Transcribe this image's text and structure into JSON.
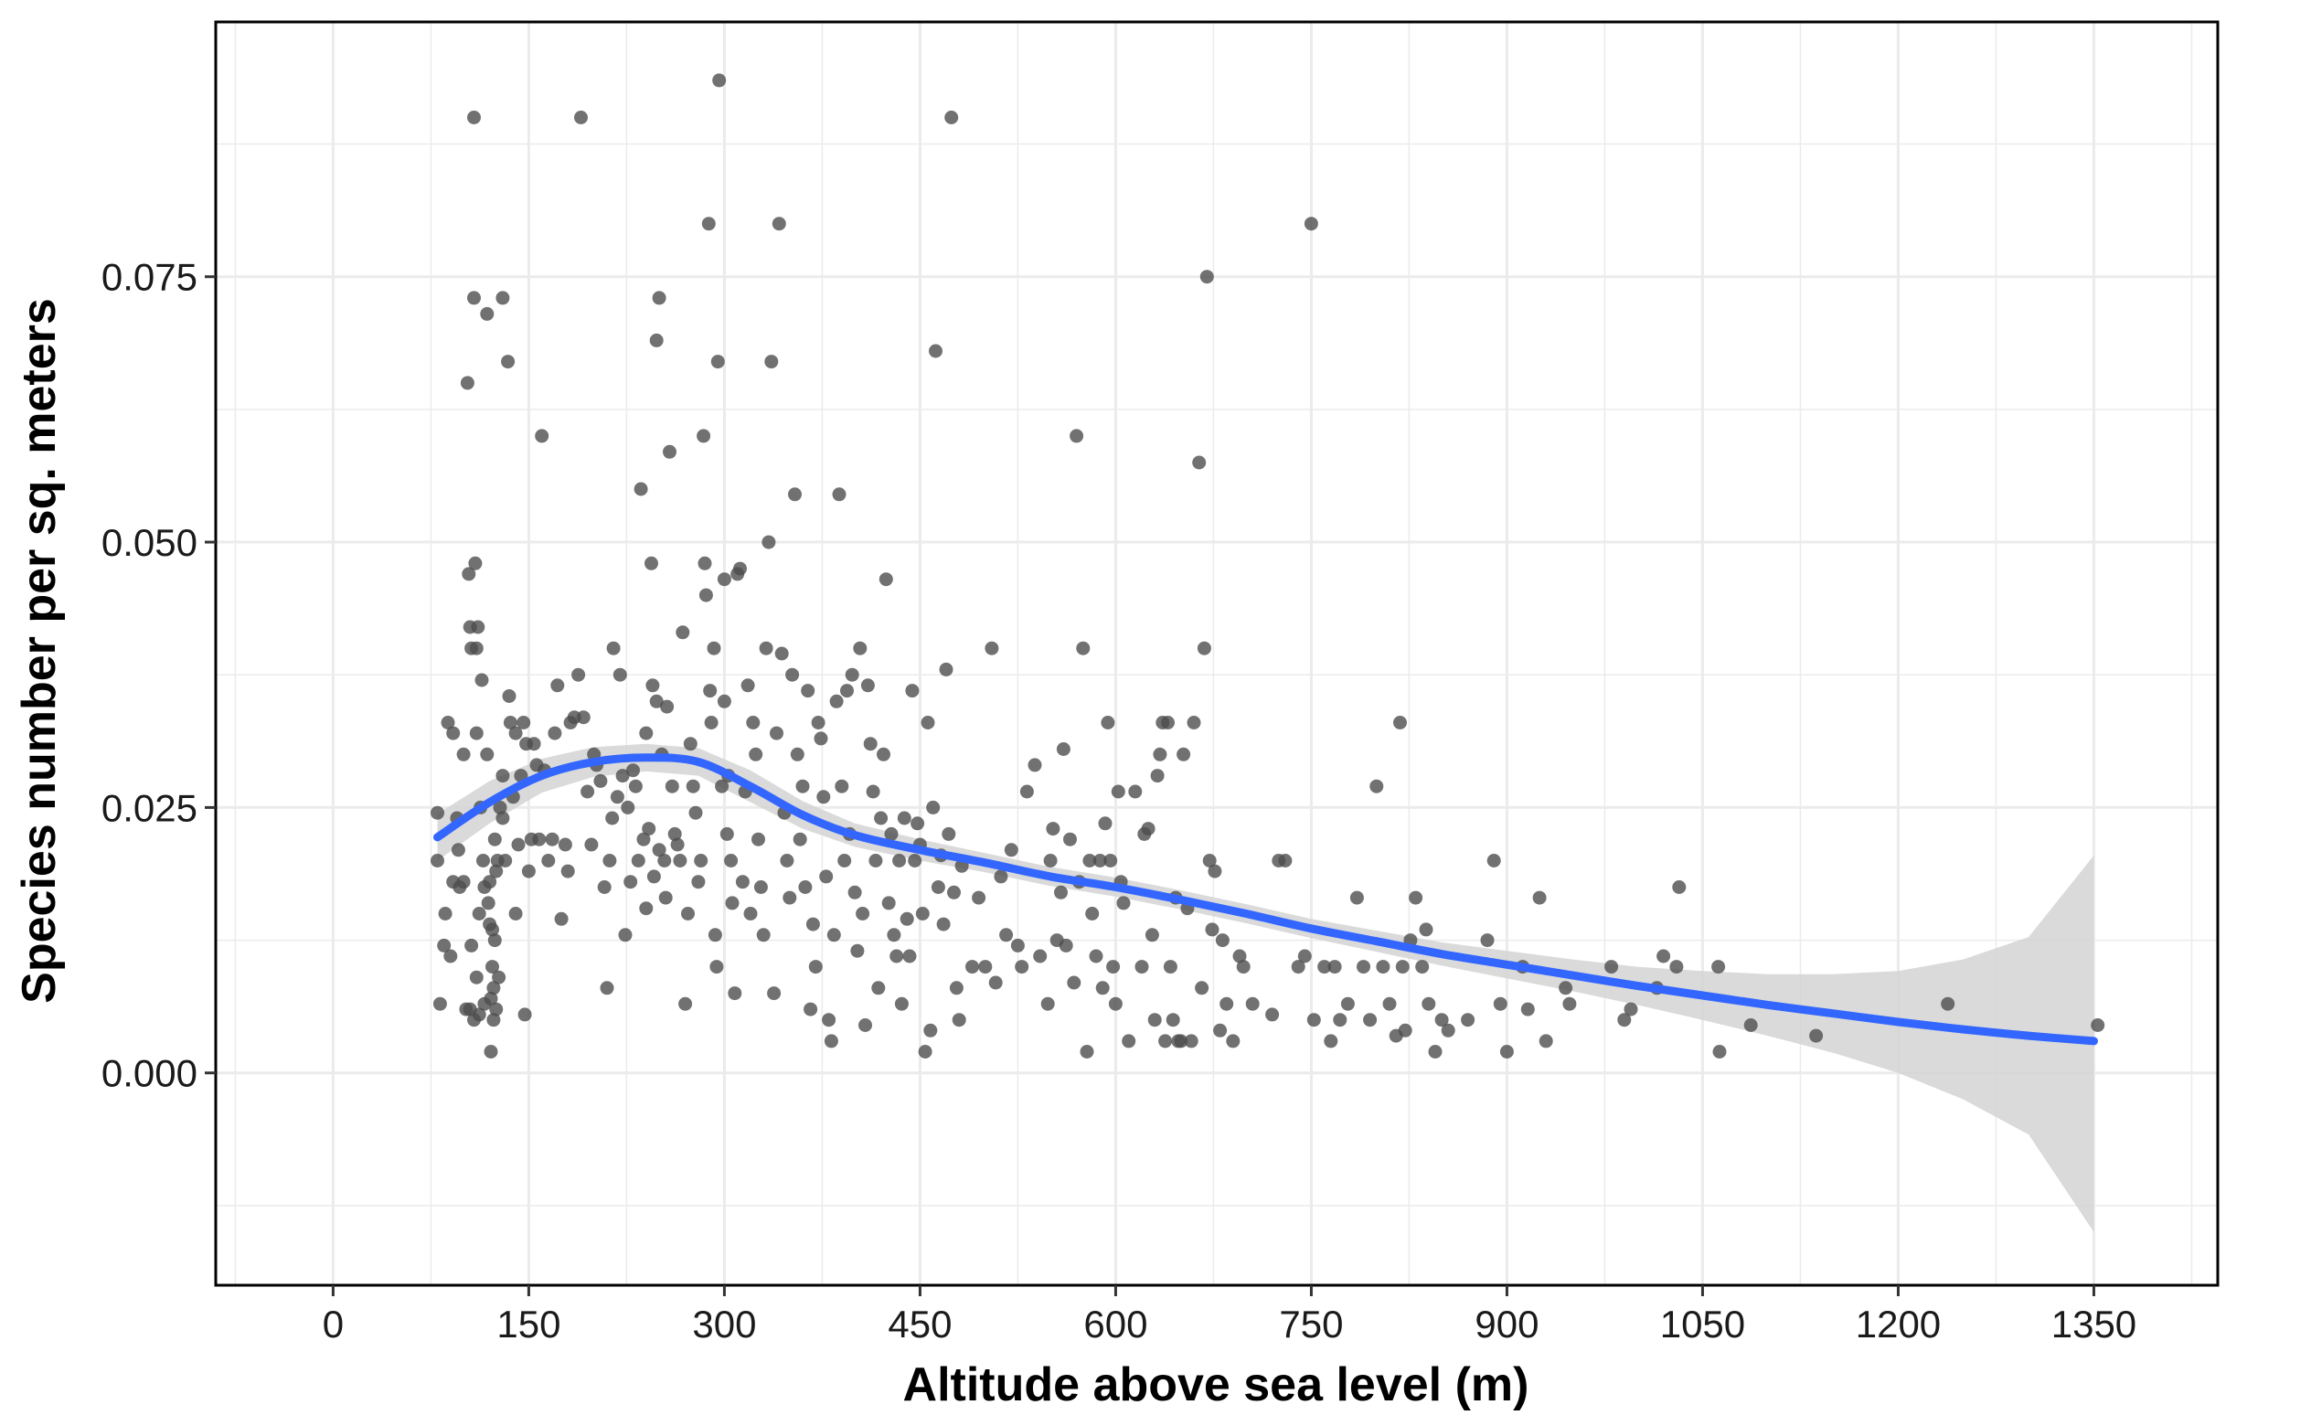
{
  "chart_data": {
    "type": "scatter",
    "title": "",
    "xlabel": "Altitude above sea level (m)",
    "ylabel": "Species number per sq. meters",
    "xlim": [
      -90,
      1445
    ],
    "ylim": [
      -0.02,
      0.099
    ],
    "x_ticks": [
      0,
      150,
      300,
      450,
      600,
      750,
      900,
      1050,
      1200,
      1350
    ],
    "x_tick_labels": [
      "0",
      "150",
      "300",
      "450",
      "600",
      "750",
      "900",
      "1050",
      "1200",
      "1350"
    ],
    "y_ticks": [
      0.0,
      0.025,
      0.05,
      0.075
    ],
    "y_tick_labels": [
      "0.000",
      "0.025",
      "0.050",
      "0.075"
    ],
    "grid": true,
    "colors": {
      "points": "#4d4d4d",
      "smooth_line": "#3366ff",
      "confidence_band": "#d3d3d3",
      "grid": "#ebebeb",
      "panel_border": "#000000"
    },
    "smooth": {
      "method": "loess",
      "x": [
        80,
        120,
        160,
        200,
        240,
        280,
        320,
        360,
        400,
        450,
        500,
        550,
        600,
        650,
        700,
        750,
        800,
        850,
        900,
        950,
        1000,
        1050,
        1100,
        1150,
        1200,
        1250,
        1300,
        1350
      ],
      "y": [
        0.0222,
        0.0255,
        0.028,
        0.0293,
        0.0297,
        0.0293,
        0.027,
        0.0243,
        0.0224,
        0.021,
        0.0198,
        0.0185,
        0.0175,
        0.0163,
        0.015,
        0.0136,
        0.0124,
        0.0112,
        0.0102,
        0.0092,
        0.0082,
        0.0073,
        0.0064,
        0.0056,
        0.0048,
        0.0041,
        0.0035,
        0.003
      ],
      "lower": [
        0.02,
        0.0235,
        0.0264,
        0.0279,
        0.0284,
        0.028,
        0.0255,
        0.023,
        0.0213,
        0.02,
        0.0189,
        0.0176,
        0.0166,
        0.0154,
        0.0141,
        0.0127,
        0.0114,
        0.0101,
        0.0089,
        0.0077,
        0.0064,
        0.005,
        0.0035,
        0.0019,
        0.0,
        -0.0025,
        -0.0058,
        -0.015
      ],
      "upper": [
        0.0244,
        0.0275,
        0.0296,
        0.0307,
        0.031,
        0.0306,
        0.0285,
        0.0256,
        0.0235,
        0.022,
        0.0207,
        0.0194,
        0.0184,
        0.0172,
        0.0159,
        0.0145,
        0.0134,
        0.0123,
        0.0115,
        0.0107,
        0.01,
        0.0096,
        0.0093,
        0.0093,
        0.0096,
        0.0107,
        0.0128,
        0.0205
      ]
    },
    "points": [
      [
        80,
        0.0245
      ],
      [
        80,
        0.02
      ],
      [
        82,
        0.0065
      ],
      [
        85,
        0.012
      ],
      [
        86,
        0.015
      ],
      [
        88,
        0.033
      ],
      [
        90,
        0.011
      ],
      [
        92,
        0.032
      ],
      [
        92,
        0.018
      ],
      [
        95,
        0.024
      ],
      [
        96,
        0.021
      ],
      [
        97,
        0.0175
      ],
      [
        100,
        0.018
      ],
      [
        100,
        0.03
      ],
      [
        102,
        0.006
      ],
      [
        103,
        0.065
      ],
      [
        104,
        0.047
      ],
      [
        105,
        0.006
      ],
      [
        105,
        0.042
      ],
      [
        106,
        0.012
      ],
      [
        106,
        0.04
      ],
      [
        108,
        0.09
      ],
      [
        108,
        0.005
      ],
      [
        108,
        0.073
      ],
      [
        109,
        0.048
      ],
      [
        110,
        0.04
      ],
      [
        110,
        0.009
      ],
      [
        110,
        0.032
      ],
      [
        111,
        0.042
      ],
      [
        112,
        0.0055
      ],
      [
        112,
        0.015
      ],
      [
        113,
        0.025
      ],
      [
        114,
        0.037
      ],
      [
        115,
        0.02
      ],
      [
        116,
        0.0175
      ],
      [
        116,
        0.0065
      ],
      [
        118,
        0.0715
      ],
      [
        118,
        0.03
      ],
      [
        119,
        0.016
      ],
      [
        120,
        0.014
      ],
      [
        120,
        0.018
      ],
      [
        121,
        0.007
      ],
      [
        121,
        0.002
      ],
      [
        122,
        0.0135
      ],
      [
        122,
        0.01
      ],
      [
        123,
        0.008
      ],
      [
        123,
        0.005
      ],
      [
        124,
        0.0125
      ],
      [
        124,
        0.022
      ],
      [
        125,
        0.019
      ],
      [
        125,
        0.006
      ],
      [
        126,
        0.02
      ],
      [
        127,
        0.009
      ],
      [
        128,
        0.025
      ],
      [
        130,
        0.024
      ],
      [
        130,
        0.073
      ],
      [
        130,
        0.028
      ],
      [
        132,
        0.02
      ],
      [
        134,
        0.067
      ],
      [
        135,
        0.0355
      ],
      [
        136,
        0.033
      ],
      [
        138,
        0.026
      ],
      [
        140,
        0.032
      ],
      [
        140,
        0.015
      ],
      [
        142,
        0.0215
      ],
      [
        144,
        0.028
      ],
      [
        146,
        0.033
      ],
      [
        147,
        0.0055
      ],
      [
        148,
        0.031
      ],
      [
        150,
        0.019
      ],
      [
        152,
        0.022
      ],
      [
        154,
        0.031
      ],
      [
        156,
        0.029
      ],
      [
        158,
        0.022
      ],
      [
        160,
        0.06
      ],
      [
        162,
        0.0285
      ],
      [
        165,
        0.02
      ],
      [
        168,
        0.022
      ],
      [
        170,
        0.032
      ],
      [
        172,
        0.0365
      ],
      [
        175,
        0.0145
      ],
      [
        178,
        0.0215
      ],
      [
        180,
        0.019
      ],
      [
        182,
        0.033
      ],
      [
        185,
        0.0335
      ],
      [
        188,
        0.0375
      ],
      [
        190,
        0.09
      ],
      [
        192,
        0.0335
      ],
      [
        195,
        0.0265
      ],
      [
        198,
        0.0215
      ],
      [
        200,
        0.03
      ],
      [
        202,
        0.029
      ],
      [
        205,
        0.0275
      ],
      [
        208,
        0.0175
      ],
      [
        210,
        0.008
      ],
      [
        212,
        0.02
      ],
      [
        214,
        0.024
      ],
      [
        215,
        0.04
      ],
      [
        218,
        0.026
      ],
      [
        220,
        0.0375
      ],
      [
        222,
        0.028
      ],
      [
        224,
        0.013
      ],
      [
        226,
        0.025
      ],
      [
        228,
        0.018
      ],
      [
        230,
        0.0285
      ],
      [
        232,
        0.027
      ],
      [
        234,
        0.02
      ],
      [
        236,
        0.055
      ],
      [
        238,
        0.022
      ],
      [
        240,
        0.032
      ],
      [
        240,
        0.0155
      ],
      [
        242,
        0.023
      ],
      [
        244,
        0.048
      ],
      [
        245,
        0.0365
      ],
      [
        246,
        0.0185
      ],
      [
        248,
        0.035
      ],
      [
        248,
        0.069
      ],
      [
        250,
        0.073
      ],
      [
        250,
        0.021
      ],
      [
        252,
        0.03
      ],
      [
        254,
        0.02
      ],
      [
        255,
        0.0165
      ],
      [
        256,
        0.0345
      ],
      [
        258,
        0.0585
      ],
      [
        260,
        0.027
      ],
      [
        262,
        0.0225
      ],
      [
        264,
        0.0215
      ],
      [
        266,
        0.02
      ],
      [
        268,
        0.0415
      ],
      [
        270,
        0.0065
      ],
      [
        272,
        0.015
      ],
      [
        274,
        0.031
      ],
      [
        276,
        0.027
      ],
      [
        278,
        0.0245
      ],
      [
        280,
        0.018
      ],
      [
        282,
        0.02
      ],
      [
        284,
        0.06
      ],
      [
        285,
        0.048
      ],
      [
        286,
        0.045
      ],
      [
        288,
        0.08
      ],
      [
        289,
        0.036
      ],
      [
        290,
        0.033
      ],
      [
        292,
        0.04
      ],
      [
        293,
        0.013
      ],
      [
        294,
        0.01
      ],
      [
        295,
        0.067
      ],
      [
        296,
        0.0935
      ],
      [
        298,
        0.027
      ],
      [
        300,
        0.0465
      ],
      [
        300,
        0.035
      ],
      [
        302,
        0.0225
      ],
      [
        303,
        0.028
      ],
      [
        305,
        0.02
      ],
      [
        306,
        0.016
      ],
      [
        308,
        0.0075
      ],
      [
        310,
        0.047
      ],
      [
        312,
        0.0475
      ],
      [
        314,
        0.018
      ],
      [
        316,
        0.0265
      ],
      [
        318,
        0.0365
      ],
      [
        320,
        0.015
      ],
      [
        322,
        0.033
      ],
      [
        324,
        0.03
      ],
      [
        326,
        0.022
      ],
      [
        328,
        0.0175
      ],
      [
        330,
        0.013
      ],
      [
        332,
        0.04
      ],
      [
        334,
        0.05
      ],
      [
        336,
        0.067
      ],
      [
        338,
        0.0075
      ],
      [
        340,
        0.032
      ],
      [
        342,
        0.08
      ],
      [
        344,
        0.0395
      ],
      [
        346,
        0.0245
      ],
      [
        348,
        0.02
      ],
      [
        350,
        0.0165
      ],
      [
        352,
        0.0375
      ],
      [
        354,
        0.0545
      ],
      [
        356,
        0.03
      ],
      [
        358,
        0.022
      ],
      [
        360,
        0.027
      ],
      [
        362,
        0.0175
      ],
      [
        364,
        0.036
      ],
      [
        366,
        0.006
      ],
      [
        368,
        0.014
      ],
      [
        370,
        0.01
      ],
      [
        372,
        0.033
      ],
      [
        374,
        0.0315
      ],
      [
        376,
        0.026
      ],
      [
        378,
        0.0185
      ],
      [
        380,
        0.005
      ],
      [
        382,
        0.003
      ],
      [
        384,
        0.013
      ],
      [
        386,
        0.035
      ],
      [
        388,
        0.0545
      ],
      [
        390,
        0.027
      ],
      [
        392,
        0.02
      ],
      [
        394,
        0.036
      ],
      [
        396,
        0.0225
      ],
      [
        398,
        0.0375
      ],
      [
        400,
        0.017
      ],
      [
        402,
        0.0115
      ],
      [
        404,
        0.04
      ],
      [
        406,
        0.015
      ],
      [
        408,
        0.0045
      ],
      [
        410,
        0.0365
      ],
      [
        412,
        0.031
      ],
      [
        414,
        0.0265
      ],
      [
        416,
        0.02
      ],
      [
        418,
        0.008
      ],
      [
        420,
        0.024
      ],
      [
        422,
        0.03
      ],
      [
        424,
        0.0465
      ],
      [
        426,
        0.016
      ],
      [
        428,
        0.0225
      ],
      [
        430,
        0.013
      ],
      [
        432,
        0.011
      ],
      [
        434,
        0.02
      ],
      [
        436,
        0.0065
      ],
      [
        438,
        0.024
      ],
      [
        440,
        0.0145
      ],
      [
        442,
        0.011
      ],
      [
        444,
        0.036
      ],
      [
        446,
        0.02
      ],
      [
        448,
        0.0235
      ],
      [
        450,
        0.0215
      ],
      [
        452,
        0.015
      ],
      [
        454,
        0.002
      ],
      [
        456,
        0.033
      ],
      [
        458,
        0.004
      ],
      [
        460,
        0.025
      ],
      [
        462,
        0.068
      ],
      [
        464,
        0.0175
      ],
      [
        466,
        0.0205
      ],
      [
        468,
        0.014
      ],
      [
        470,
        0.038
      ],
      [
        472,
        0.0225
      ],
      [
        474,
        0.09
      ],
      [
        476,
        0.017
      ],
      [
        478,
        0.008
      ],
      [
        480,
        0.005
      ],
      [
        482,
        0.0195
      ],
      [
        490,
        0.01
      ],
      [
        495,
        0.0165
      ],
      [
        500,
        0.01
      ],
      [
        505,
        0.04
      ],
      [
        508,
        0.0085
      ],
      [
        512,
        0.0185
      ],
      [
        516,
        0.013
      ],
      [
        520,
        0.021
      ],
      [
        525,
        0.012
      ],
      [
        528,
        0.01
      ],
      [
        532,
        0.0265
      ],
      [
        538,
        0.029
      ],
      [
        542,
        0.011
      ],
      [
        548,
        0.0065
      ],
      [
        550,
        0.02
      ],
      [
        552,
        0.023
      ],
      [
        555,
        0.0125
      ],
      [
        558,
        0.017
      ],
      [
        560,
        0.0305
      ],
      [
        562,
        0.012
      ],
      [
        565,
        0.022
      ],
      [
        568,
        0.0085
      ],
      [
        570,
        0.06
      ],
      [
        572,
        0.018
      ],
      [
        575,
        0.04
      ],
      [
        578,
        0.002
      ],
      [
        580,
        0.02
      ],
      [
        582,
        0.015
      ],
      [
        585,
        0.011
      ],
      [
        588,
        0.02
      ],
      [
        590,
        0.008
      ],
      [
        592,
        0.0235
      ],
      [
        594,
        0.033
      ],
      [
        596,
        0.02
      ],
      [
        598,
        0.01
      ],
      [
        600,
        0.0065
      ],
      [
        602,
        0.0265
      ],
      [
        604,
        0.018
      ],
      [
        606,
        0.016
      ],
      [
        610,
        0.003
      ],
      [
        615,
        0.0265
      ],
      [
        620,
        0.01
      ],
      [
        622,
        0.0225
      ],
      [
        625,
        0.023
      ],
      [
        628,
        0.013
      ],
      [
        630,
        0.005
      ],
      [
        632,
        0.028
      ],
      [
        634,
        0.03
      ],
      [
        636,
        0.033
      ],
      [
        638,
        0.003
      ],
      [
        640,
        0.033
      ],
      [
        642,
        0.01
      ],
      [
        644,
        0.005
      ],
      [
        646,
        0.0165
      ],
      [
        648,
        0.003
      ],
      [
        650,
        0.003
      ],
      [
        652,
        0.03
      ],
      [
        655,
        0.0155
      ],
      [
        658,
        0.003
      ],
      [
        660,
        0.033
      ],
      [
        664,
        0.0575
      ],
      [
        666,
        0.008
      ],
      [
        668,
        0.04
      ],
      [
        670,
        0.075
      ],
      [
        672,
        0.02
      ],
      [
        674,
        0.0135
      ],
      [
        676,
        0.019
      ],
      [
        680,
        0.004
      ],
      [
        682,
        0.0125
      ],
      [
        685,
        0.0065
      ],
      [
        690,
        0.003
      ],
      [
        695,
        0.011
      ],
      [
        698,
        0.01
      ],
      [
        705,
        0.0065
      ],
      [
        720,
        0.0055
      ],
      [
        725,
        0.02
      ],
      [
        730,
        0.02
      ],
      [
        740,
        0.01
      ],
      [
        745,
        0.011
      ],
      [
        750,
        0.08
      ],
      [
        752,
        0.005
      ],
      [
        760,
        0.01
      ],
      [
        765,
        0.003
      ],
      [
        768,
        0.01
      ],
      [
        772,
        0.005
      ],
      [
        778,
        0.0065
      ],
      [
        785,
        0.0165
      ],
      [
        790,
        0.01
      ],
      [
        795,
        0.005
      ],
      [
        800,
        0.027
      ],
      [
        805,
        0.01
      ],
      [
        810,
        0.0065
      ],
      [
        815,
        0.0035
      ],
      [
        818,
        0.033
      ],
      [
        820,
        0.01
      ],
      [
        822,
        0.004
      ],
      [
        826,
        0.0125
      ],
      [
        830,
        0.0165
      ],
      [
        835,
        0.01
      ],
      [
        838,
        0.0135
      ],
      [
        840,
        0.0065
      ],
      [
        845,
        0.002
      ],
      [
        850,
        0.005
      ],
      [
        855,
        0.004
      ],
      [
        870,
        0.005
      ],
      [
        885,
        0.0125
      ],
      [
        890,
        0.02
      ],
      [
        895,
        0.0065
      ],
      [
        900,
        0.002
      ],
      [
        912,
        0.01
      ],
      [
        916,
        0.006
      ],
      [
        925,
        0.0165
      ],
      [
        930,
        0.003
      ],
      [
        945,
        0.008
      ],
      [
        948,
        0.0065
      ],
      [
        980,
        0.01
      ],
      [
        990,
        0.005
      ],
      [
        995,
        0.006
      ],
      [
        1015,
        0.008
      ],
      [
        1020,
        0.011
      ],
      [
        1030,
        0.01
      ],
      [
        1032,
        0.0175
      ],
      [
        1062,
        0.01
      ],
      [
        1063,
        0.002
      ],
      [
        1087,
        0.0045
      ],
      [
        1137,
        0.0035
      ],
      [
        1238,
        0.0065
      ],
      [
        1353,
        0.0045
      ]
    ]
  }
}
